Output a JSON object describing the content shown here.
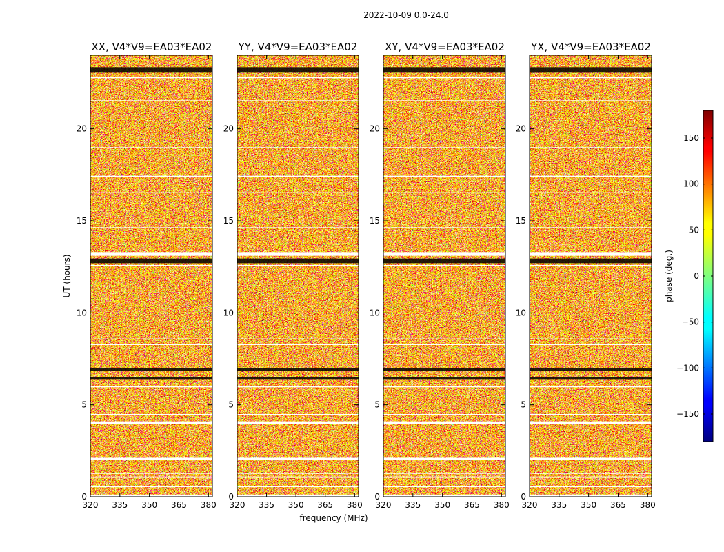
{
  "chart_data": {
    "type": "heatmap",
    "title": "2022-10-09 0.0-24.0",
    "xlabel": "frequency (MHz)",
    "ylabel": "UT (hours)",
    "xlim": [
      320,
      382
    ],
    "ylim": [
      0,
      24
    ],
    "x_ticks": [
      "320",
      "335",
      "350",
      "365",
      "380"
    ],
    "y_ticks": [
      "0",
      "5",
      "10",
      "15",
      "20"
    ],
    "panels": [
      {
        "title": "XX, V4*V9=EA03*EA02",
        "product": "XX"
      },
      {
        "title": "YY, V4*V9=EA03*EA02",
        "product": "YY"
      },
      {
        "title": "XY, V4*V9=EA03*EA02",
        "product": "XY"
      },
      {
        "title": "YX, V4*V9=EA03*EA02",
        "product": "YX"
      }
    ],
    "colorbar": {
      "label": "phase (deg.)",
      "range": [
        -180,
        180
      ],
      "ticks": [
        "150",
        "100",
        "50",
        "0",
        "−50",
        "−100",
        "−150"
      ],
      "tick_values": [
        150,
        100,
        50,
        0,
        -50,
        -100,
        -150
      ],
      "colormap": "jet"
    },
    "flagged_gaps_hours": [
      [
        0.0,
        0.12
      ],
      [
        0.52,
        0.58
      ],
      [
        1.03,
        1.1
      ],
      [
        1.25,
        1.3
      ],
      [
        2.0,
        2.12
      ],
      [
        3.95,
        4.1
      ],
      [
        4.45,
        4.5
      ],
      [
        5.95,
        6.0
      ],
      [
        8.25,
        8.3
      ],
      [
        8.55,
        8.6
      ],
      [
        12.55,
        12.6
      ],
      [
        13.1,
        13.3
      ],
      [
        14.6,
        14.65
      ],
      [
        16.5,
        16.55
      ],
      [
        17.4,
        17.45
      ],
      [
        18.95,
        19.0
      ],
      [
        21.5,
        21.55
      ],
      [
        22.75,
        22.8
      ]
    ],
    "black_band_hours": [
      [
        23.05,
        23.35
      ],
      [
        12.7,
        12.95
      ],
      [
        6.85,
        7.0
      ],
      [
        6.4,
        6.5
      ]
    ]
  },
  "colors": {
    "frame": "#000000",
    "background": "#ffffff",
    "flagged": "#ffffff",
    "band_black": "#000000"
  }
}
